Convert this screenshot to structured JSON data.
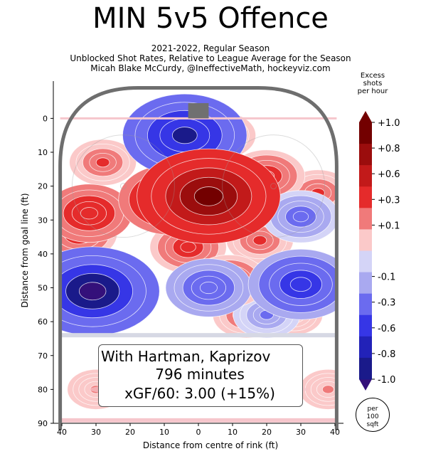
{
  "title": "MIN 5v5 Offence",
  "subtitle_lines": [
    "2021-2022, Regular Season",
    "Unblocked Shot Rates, Relative to League Average for the Season",
    "Micah Blake McCurdy, @IneffectiveMath, hockeyviz.com"
  ],
  "annotation": {
    "line1": "With Hartman, Kaprizov",
    "line2": "796 minutes",
    "line3": "xGF/60: 3.00 (+15%)"
  },
  "colorbar": {
    "title": "Excess\nshots\nper hour",
    "unit_badge": "per\n100\nsqft",
    "tick_labels": [
      "+1.0",
      "+0.8",
      "+0.6",
      "+0.3",
      "+0.1",
      "-0.1",
      "-0.3",
      "-0.6",
      "-0.8",
      "-1.0"
    ],
    "colors": [
      "#730000",
      "#9b0d0d",
      "#c21a1a",
      "#e52b2b",
      "#f07a7a",
      "#fbc9c9",
      "#d4d4f7",
      "#a9a9f0",
      "#6b6bef",
      "#3636e6",
      "#2222b8",
      "#1a1a8a",
      "#34107a"
    ]
  },
  "colors": {
    "rink_border": "#6e6e6e",
    "goal": "#707070",
    "red_line": "#f6c6cc",
    "blue_line": "#d6d8e4"
  },
  "chart_data": {
    "type": "heatmap",
    "title": "MIN 5v5 Offence",
    "xlabel": "Distance from centre of rink (ft)",
    "ylabel": "Distance from goal line (ft)",
    "xlim": [
      -42.5,
      42.5
    ],
    "ylim": [
      90,
      -11
    ],
    "x_ticks": [
      40,
      30,
      20,
      10,
      0,
      10,
      20,
      30,
      40
    ],
    "y_ticks": [
      0,
      10,
      20,
      30,
      40,
      50,
      60,
      70,
      80,
      90
    ],
    "value_range": [
      -1.0,
      1.0
    ],
    "hotspots": [
      {
        "x": 3,
        "y": 23,
        "value": 1.0
      },
      {
        "x": -8,
        "y": 24,
        "value": 0.6
      },
      {
        "x": -32,
        "y": 28,
        "value": 0.4
      },
      {
        "x": -35,
        "y": 34,
        "value": 0.3
      },
      {
        "x": -3,
        "y": 38,
        "value": 0.3
      },
      {
        "x": 9,
        "y": 48,
        "value": 0.3
      },
      {
        "x": 20,
        "y": 17,
        "value": 0.3
      },
      {
        "x": -28,
        "y": 13,
        "value": 0.2
      },
      {
        "x": 35,
        "y": 22,
        "value": 0.2
      },
      {
        "x": 7,
        "y": 5,
        "value": 0.2
      },
      {
        "x": 14,
        "y": 58,
        "value": 0.2
      },
      {
        "x": 28,
        "y": 58,
        "value": 0.1
      },
      {
        "x": 18,
        "y": 36,
        "value": 0.2
      },
      {
        "x": -30,
        "y": 80,
        "value": 0.1
      },
      {
        "x": 38,
        "y": 80,
        "value": 0.1
      },
      {
        "x": -31,
        "y": 51,
        "value": -0.9
      },
      {
        "x": -4,
        "y": 5,
        "value": -0.8
      },
      {
        "x": 30,
        "y": 49,
        "value": -0.6
      },
      {
        "x": 30,
        "y": 29,
        "value": -0.3
      },
      {
        "x": 3,
        "y": 50,
        "value": -0.4
      },
      {
        "x": 20,
        "y": 58,
        "value": -0.2
      },
      {
        "x": -10,
        "y": 8,
        "value": -0.2
      }
    ]
  }
}
